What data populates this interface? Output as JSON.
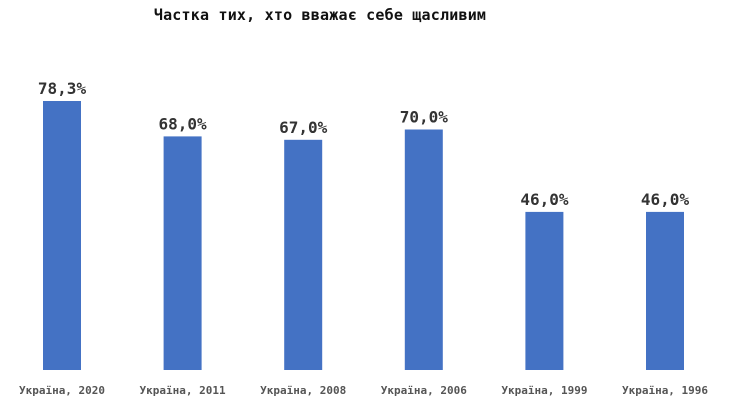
{
  "chart_data": {
    "type": "bar",
    "title": "Частка тих, хто вважає себе щасливим",
    "categories": [
      "Україна, 2020",
      "Україна, 2011",
      "Україна, 2008",
      "Україна, 2006",
      "Україна, 1999",
      "Україна, 1996"
    ],
    "values": [
      78.3,
      68.0,
      67.0,
      70.0,
      46.0,
      46.0
    ],
    "data_labels": [
      "78,3%",
      "68,0%",
      "67,0%",
      "70,0%",
      "46,0%",
      "46,0%"
    ],
    "xlabel": "",
    "ylabel": "",
    "ylim": [
      0,
      100
    ],
    "grid": false,
    "legend": "none",
    "bar_color": "#4472C4"
  }
}
